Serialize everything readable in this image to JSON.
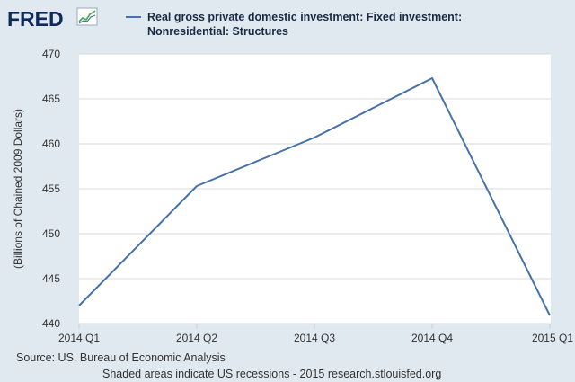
{
  "logo": {
    "text": "FRED",
    "icon": "line-graph-icon"
  },
  "colors": {
    "background": "#e1e9f0",
    "plot_background": "#ffffff",
    "series_line": "#4572a7",
    "logo": "#0c2b5a"
  },
  "chart_data": {
    "type": "line",
    "title": "",
    "xlabel": "",
    "ylabel": "(Billions of Chained 2009 Dollars)",
    "categories": [
      "2014 Q1",
      "2014 Q2",
      "2014 Q3",
      "2014 Q4",
      "2015 Q1"
    ],
    "series": [
      {
        "name": "Real gross private domestic investment: Fixed investment: Nonresidential: Structures",
        "values": [
          442.0,
          455.3,
          460.7,
          467.3,
          440.9
        ]
      }
    ],
    "ylim": [
      440,
      470
    ],
    "yticks": [
      440,
      445,
      450,
      455,
      460,
      465,
      470
    ],
    "grid": true,
    "legend_position": "top"
  },
  "legend": {
    "line1": "Real gross private domestic investment: Fixed investment:",
    "line2": "Nonresidential: Structures"
  },
  "footer": {
    "source": "Source: US. Bureau of Economic Analysis",
    "note": "Shaded areas indicate US recessions - 2015 research.stlouisfed.org"
  }
}
